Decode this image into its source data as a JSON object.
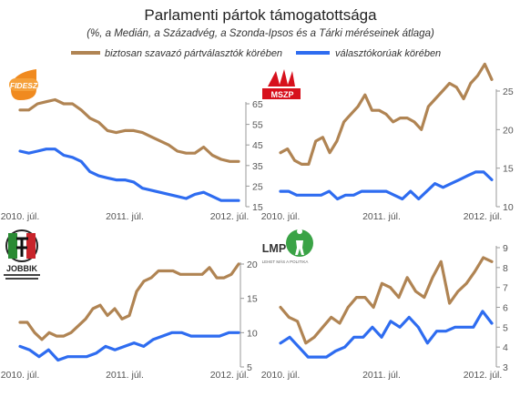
{
  "title": "Parlamenti pártok támogatottsága",
  "subtitle": "(%, a Medián, a Századvég, a Szonda-Ipsos és a Tárki méréseinek átlaga)",
  "colors": {
    "sure": "#b08453",
    "all": "#2e6cf0",
    "axis": "#9a9a9a",
    "text": "#555555"
  },
  "legend": [
    {
      "label": "biztosan szavazó pártválasztók körében",
      "color": "#b08453"
    },
    {
      "label": "választókorúak körében",
      "color": "#2e6cf0"
    }
  ],
  "chart_data": [
    {
      "type": "line",
      "party_label": "FIDESZ",
      "x_ticks": [
        "2010. júl.",
        "2011. júl.",
        "2012. júl."
      ],
      "ylim": [
        15,
        65
      ],
      "y_ticks": [
        15,
        25,
        35,
        45,
        55,
        65
      ],
      "series": [
        {
          "name": "biztosan szavazó pártválasztók körében",
          "values": [
            62,
            62,
            65,
            66,
            67,
            65,
            65,
            62,
            58,
            56,
            52,
            51,
            52,
            52,
            51,
            49,
            47,
            45,
            42,
            41,
            41,
            44,
            40,
            38,
            37,
            37
          ]
        },
        {
          "name": "választókorúak körében",
          "values": [
            42,
            41,
            42,
            43,
            43,
            40,
            39,
            37,
            32,
            30,
            29,
            28,
            28,
            27,
            24,
            23,
            22,
            21,
            20,
            19,
            21,
            22,
            20,
            18,
            18,
            18
          ]
        }
      ]
    },
    {
      "type": "line",
      "party_label": "MSZP",
      "x_ticks": [
        "2010. júl.",
        "2011. júl.",
        "2012. júl."
      ],
      "ylim": [
        10,
        25
      ],
      "y_ticks": [
        10,
        15,
        20,
        25
      ],
      "series": [
        {
          "name": "biztosan szavazó pártválasztók körében",
          "values": [
            17,
            17.5,
            16,
            15.5,
            15.5,
            18.5,
            19,
            17,
            18.5,
            21,
            22,
            23,
            24.5,
            22.5,
            22.5,
            22,
            21,
            21.5,
            21.5,
            21,
            20,
            23,
            24,
            25,
            26,
            25.5,
            24,
            26,
            27,
            28.5,
            26.5
          ]
        },
        {
          "name": "választókorúak körében",
          "values": [
            12,
            12,
            11.5,
            11.5,
            11.5,
            11.5,
            12,
            11,
            11.5,
            11.5,
            12,
            12,
            12,
            12,
            11.5,
            11,
            12,
            11,
            12,
            13,
            12.5,
            13,
            13.5,
            14,
            14.5,
            14.5,
            13.5
          ]
        }
      ]
    },
    {
      "type": "line",
      "party_label": "JOBBIK",
      "x_ticks": [
        "2010. júl.",
        "2011. júl.",
        "2012. júl."
      ],
      "ylim": [
        5,
        20
      ],
      "y_ticks": [
        5,
        10,
        15,
        20
      ],
      "series": [
        {
          "name": "biztosan szavazó pártválasztók körében",
          "values": [
            11.5,
            11.5,
            10,
            9,
            10,
            9.5,
            9.5,
            10,
            11,
            12,
            13.5,
            14,
            12.5,
            13.5,
            12,
            12.5,
            16,
            17.5,
            18,
            19,
            19,
            19,
            18.5,
            18.5,
            18.5,
            18.5,
            19.5,
            18,
            18,
            18.5,
            20
          ]
        },
        {
          "name": "választókorúak körében",
          "values": [
            8,
            7.5,
            6.5,
            7.5,
            6,
            6.5,
            6.5,
            6.5,
            7,
            8,
            7.5,
            8,
            8.5,
            8,
            9,
            9.5,
            10,
            10,
            9.5,
            9.5,
            9.5,
            9.5,
            10,
            10
          ]
        }
      ]
    },
    {
      "type": "line",
      "party_label": "LMP",
      "x_ticks": [
        "2010. júl.",
        "2011. júl.",
        "2012. júl."
      ],
      "ylim": [
        3,
        9
      ],
      "y_ticks": [
        3,
        4,
        5,
        6,
        7,
        8,
        9
      ],
      "series": [
        {
          "name": "biztosan szavazó pártválasztók körében",
          "values": [
            6,
            5.5,
            5.3,
            4.2,
            4.5,
            5,
            5.5,
            5.2,
            6,
            6.5,
            6.5,
            6,
            7.2,
            7,
            6.5,
            7.5,
            6.8,
            6.5,
            7.5,
            8.3,
            6.2,
            6.8,
            7.2,
            7.8,
            8.5,
            8.3
          ]
        },
        {
          "name": "választókorúak körében",
          "values": [
            4.2,
            4.5,
            4,
            3.5,
            3.5,
            3.5,
            3.8,
            4,
            4.5,
            4.5,
            5,
            4.5,
            5.3,
            5,
            5.5,
            5,
            4.2,
            4.8,
            4.8,
            5,
            5,
            5,
            5.8,
            5.2
          ]
        }
      ]
    }
  ]
}
